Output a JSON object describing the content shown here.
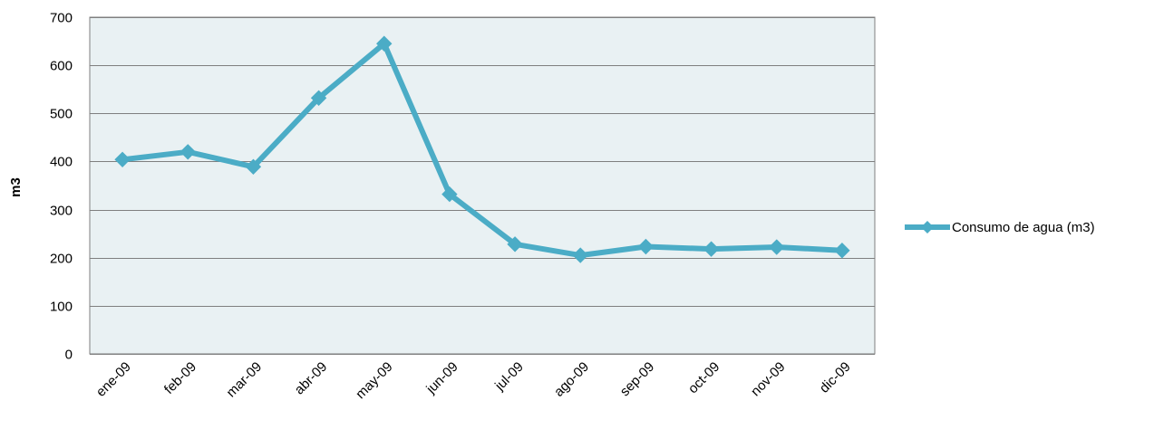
{
  "chart_data": {
    "type": "line",
    "title": "",
    "xlabel": "",
    "ylabel": "m3",
    "categories": [
      "ene-09",
      "feb-09",
      "mar-09",
      "abr-09",
      "may-09",
      "jun-09",
      "jul-09",
      "ago-09",
      "sep-09",
      "oct-09",
      "nov-09",
      "dic-09"
    ],
    "series": [
      {
        "name": "Consumo de agua (m3)",
        "values": [
          404,
          420,
          389,
          532,
          645,
          332,
          228,
          205,
          223,
          218,
          222,
          215
        ],
        "color": "#4bacc6"
      }
    ],
    "ylim": [
      0,
      700
    ],
    "yticks": [
      0,
      100,
      200,
      300,
      400,
      500,
      600,
      700
    ],
    "grid": true,
    "legend_position": "right",
    "plot_background": "#e9f1f3",
    "gridline_color": "#7f7f7f"
  }
}
